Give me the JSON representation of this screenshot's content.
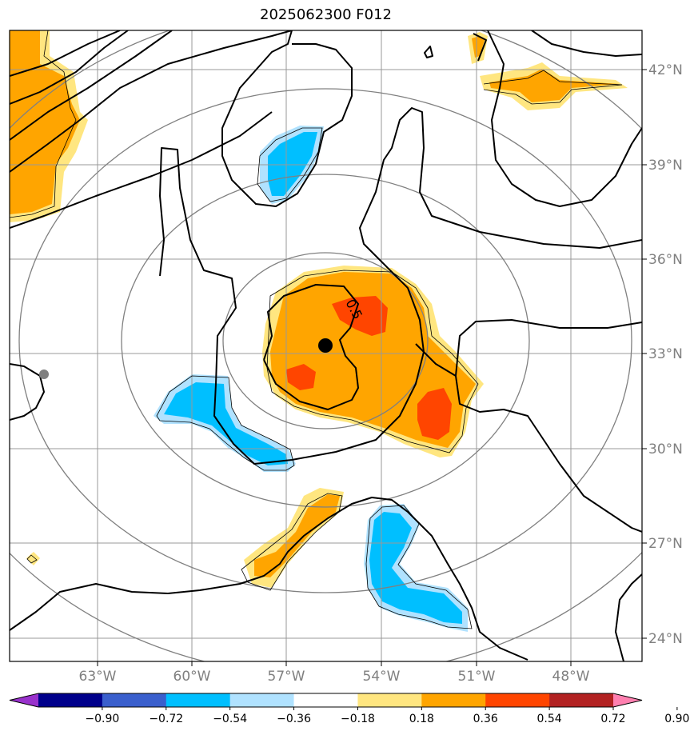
{
  "title": "2025062300 F012",
  "contour_label": "0.5",
  "longitude_labels": [
    "63°W",
    "60°W",
    "57°W",
    "54°W",
    "51°W",
    "48°W"
  ],
  "latitude_labels": [
    "42°N",
    "39°N",
    "36°N",
    "33°N",
    "30°N",
    "27°N",
    "24°N"
  ],
  "colorbar": {
    "tick_labels": [
      "−0.90",
      "−0.72",
      "−0.54",
      "−0.36",
      "−0.18",
      "0.18",
      "0.36",
      "0.54",
      "0.72",
      "0.90"
    ],
    "colors": [
      "#9932cc",
      "#00008b",
      "#3a5fcd",
      "#00bfff",
      "#b0e2ff",
      "#ffffff",
      "#ffe680",
      "#ffa500",
      "#ff4500",
      "#b22222",
      "#ff80b0"
    ]
  },
  "palette": {
    "light_yellow": "#ffe680",
    "orange": "#ffa500",
    "red_orange": "#ff4500",
    "deep_sky_blue": "#00bfff",
    "light_blue": "#b0e2ff",
    "gridline": "#999999",
    "range_ring": "#808080",
    "contour": "#000000"
  }
}
